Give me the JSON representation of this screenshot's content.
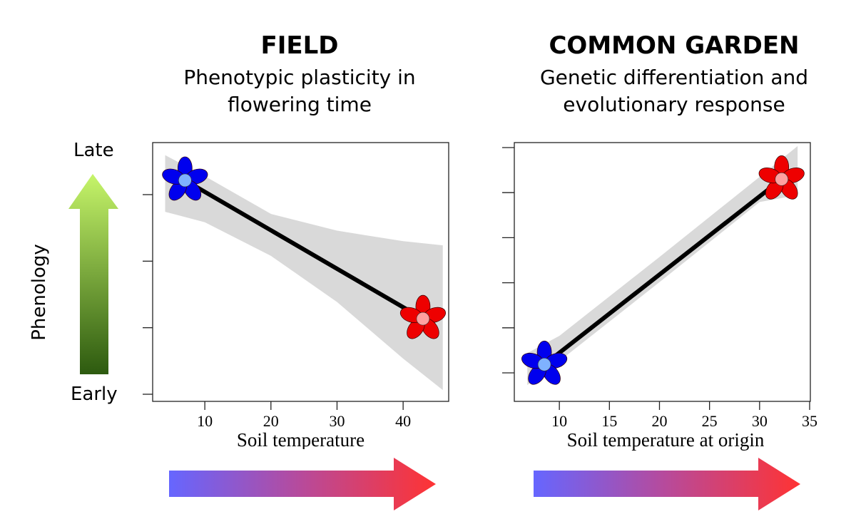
{
  "panels": [
    {
      "title": "FIELD",
      "subtitle_lines": [
        "Phenotypic plasticity in",
        "flowering time"
      ]
    },
    {
      "title": "COMMON GARDEN",
      "subtitle_lines": [
        "Genetic differentiation and",
        "evolutionary response"
      ]
    }
  ],
  "y_axis": {
    "label": "Phenology",
    "top_label": "Late",
    "bottom_label": "Early",
    "arrow_colors": [
      "#c6f56a",
      "#2d5a0f"
    ]
  },
  "temperature_arrow_colors": [
    "#6666ff",
    "#ff3333"
  ],
  "colors": {
    "cold_flower": "#0000ee",
    "cold_center": "#7fb2ff",
    "warm_flower": "#ee0000",
    "warm_center": "#ffa0a0",
    "ribbon": "#d9d9d9",
    "line": "#000000"
  },
  "chart_data": [
    {
      "type": "line",
      "title": "FIELD",
      "subtitle": "Phenotypic plasticity in flowering time",
      "xlabel": "Soil temperature",
      "ylabel": "Phenology",
      "xlim": [
        2,
        47
      ],
      "ylim": [
        0,
        6
      ],
      "xticks": [
        10,
        20,
        30,
        40
      ],
      "yticks_count": 4,
      "ytick_labels": [],
      "grid": false,
      "series": [
        {
          "name": "fit",
          "x": [
            7,
            43
          ],
          "y": [
            5.1,
            1.8
          ]
        }
      ],
      "ribbon": {
        "x": [
          4,
          10,
          20,
          30,
          40,
          46
        ],
        "upper": [
          5.7,
          5.2,
          4.3,
          3.9,
          3.65,
          3.55
        ],
        "lower": [
          4.35,
          4.1,
          3.3,
          2.2,
          0.85,
          0.1
        ]
      },
      "markers": [
        {
          "label": "cold",
          "x": 7,
          "y": 5.1,
          "shape": "flower",
          "color": "cold"
        },
        {
          "label": "warm",
          "x": 43,
          "y": 1.8,
          "shape": "flower",
          "color": "warm"
        }
      ]
    },
    {
      "type": "line",
      "title": "COMMON GARDEN",
      "subtitle": "Genetic differentiation and evolutionary response",
      "xlabel": "Soil temperature at origin",
      "ylabel": "Phenology",
      "xlim": [
        5.5,
        35
      ],
      "ylim": [
        0,
        11
      ],
      "xticks": [
        10,
        15,
        20,
        25,
        30,
        35
      ],
      "yticks_count": 6,
      "ytick_labels": [],
      "grid": false,
      "series": [
        {
          "name": "fit",
          "x": [
            8.5,
            32.2
          ],
          "y": [
            1.3,
            9.4
          ]
        }
      ],
      "ribbon": {
        "x": [
          6.8,
          10,
          20,
          30,
          33.8
        ],
        "upper": [
          1.8,
          2.55,
          6.0,
          9.5,
          10.85
        ],
        "lower": [
          0.4,
          1.45,
          4.9,
          8.4,
          8.7
        ]
      },
      "markers": [
        {
          "label": "cold",
          "x": 8.5,
          "y": 1.3,
          "shape": "flower",
          "color": "cold"
        },
        {
          "label": "warm",
          "x": 32.2,
          "y": 9.4,
          "shape": "flower",
          "color": "warm"
        }
      ]
    }
  ]
}
